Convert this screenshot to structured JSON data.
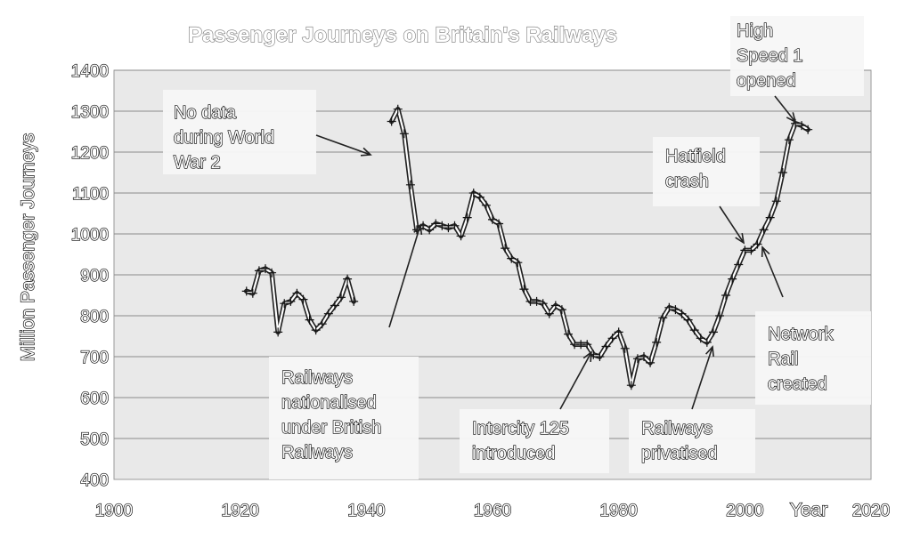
{
  "chart_data": {
    "type": "line",
    "title": "Passenger Journeys on Britain's Railways",
    "xlabel": "Year",
    "ylabel": "Million Passenger Journeys",
    "xlim": [
      1900,
      2020
    ],
    "ylim": [
      400,
      1400
    ],
    "xticks": [
      1900,
      1920,
      1940,
      1960,
      1980,
      2000,
      2020
    ],
    "yticks": [
      400,
      500,
      600,
      700,
      800,
      900,
      1000,
      1100,
      1200,
      1300,
      1400
    ],
    "grid": "horizontal",
    "legend": "none",
    "series": [
      {
        "color": "#ffffff",
        "segments": [
          [
            [
              1921,
              860
            ],
            [
              1922,
              855
            ],
            [
              1923,
              910
            ],
            [
              1924,
              915
            ],
            [
              1925,
              905
            ],
            [
              1926,
              760
            ],
            [
              1927,
              830
            ],
            [
              1928,
              835
            ],
            [
              1929,
              855
            ],
            [
              1930,
              840
            ],
            [
              1931,
              790
            ],
            [
              1932,
              765
            ],
            [
              1933,
              780
            ],
            [
              1934,
              805
            ],
            [
              1935,
              825
            ],
            [
              1936,
              845
            ],
            [
              1937,
              890
            ],
            [
              1938,
              835
            ]
          ],
          [
            [
              1944,
              1275
            ],
            [
              1945,
              1305
            ],
            [
              1946,
              1245
            ],
            [
              1947,
              1120
            ],
            [
              1948,
              1010
            ],
            [
              1949,
              1020
            ],
            [
              1950,
              1010
            ],
            [
              1951,
              1025
            ],
            [
              1952,
              1020
            ],
            [
              1953,
              1015
            ],
            [
              1954,
              1020
            ],
            [
              1955,
              995
            ],
            [
              1956,
              1040
            ],
            [
              1957,
              1100
            ],
            [
              1958,
              1090
            ],
            [
              1959,
              1070
            ],
            [
              1960,
              1035
            ],
            [
              1961,
              1025
            ],
            [
              1962,
              965
            ],
            [
              1963,
              940
            ],
            [
              1964,
              930
            ],
            [
              1965,
              865
            ],
            [
              1966,
              835
            ],
            [
              1967,
              835
            ],
            [
              1968,
              830
            ],
            [
              1969,
              805
            ],
            [
              1970,
              825
            ],
            [
              1971,
              815
            ],
            [
              1972,
              755
            ],
            [
              1973,
              730
            ],
            [
              1974,
              730
            ],
            [
              1975,
              730
            ],
            [
              1976,
              705
            ],
            [
              1977,
              700
            ],
            [
              1978,
              725
            ],
            [
              1979,
              745
            ],
            [
              1980,
              760
            ],
            [
              1981,
              720
            ],
            [
              1982,
              630
            ],
            [
              1983,
              695
            ],
            [
              1984,
              700
            ],
            [
              1985,
              685
            ],
            [
              1986,
              735
            ],
            [
              1987,
              795
            ],
            [
              1988,
              820
            ],
            [
              1989,
              815
            ],
            [
              1990,
              805
            ],
            [
              1991,
              790
            ],
            [
              1992,
              765
            ],
            [
              1993,
              745
            ],
            [
              1994,
              735
            ],
            [
              1995,
              760
            ],
            [
              1996,
              800
            ],
            [
              1997,
              850
            ],
            [
              1998,
              890
            ],
            [
              1999,
              925
            ],
            [
              2000,
              960
            ],
            [
              2001,
              960
            ],
            [
              2002,
              975
            ],
            [
              2003,
              1010
            ],
            [
              2004,
              1040
            ],
            [
              2005,
              1080
            ],
            [
              2006,
              1150
            ],
            [
              2007,
              1230
            ],
            [
              2008,
              1270
            ],
            [
              2009,
              1265
            ],
            [
              2010,
              1255
            ]
          ]
        ]
      }
    ],
    "annotations": [
      {
        "lines": [
          "No data",
          "during World",
          "War 2"
        ]
      },
      {
        "lines": [
          "Railways",
          "nationalised",
          "under British",
          "Railways"
        ]
      },
      {
        "lines": [
          "Intercity 125",
          "introduced"
        ]
      },
      {
        "lines": [
          "Railways",
          "privatised"
        ]
      },
      {
        "lines": [
          "Hatfield",
          "crash"
        ]
      },
      {
        "lines": [
          "High",
          "Speed 1",
          "opened"
        ]
      },
      {
        "lines": [
          "Network",
          "Rail",
          "created"
        ]
      }
    ]
  }
}
